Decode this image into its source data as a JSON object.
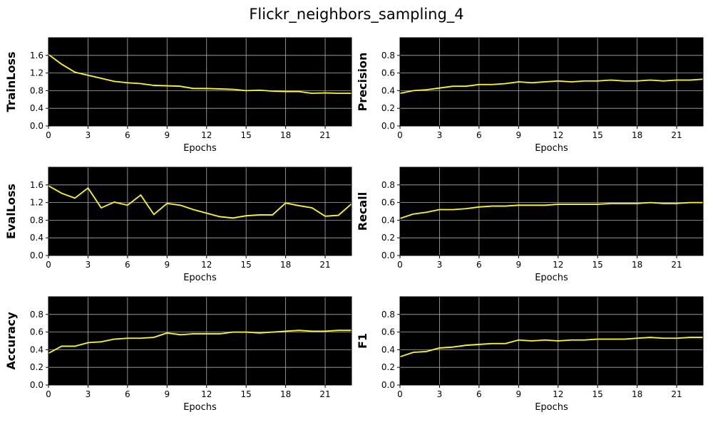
{
  "figure": {
    "title": "Flickr_neighbors_sampling_4"
  },
  "colors": {
    "plot_bg": "#000000",
    "line": "#ffff00",
    "grid": "#b0b0b0"
  },
  "chart_data": [
    {
      "type": "line",
      "ylabel": "TrainLoss",
      "xlabel": "Epochs",
      "xlim": [
        0,
        23
      ],
      "ylim": [
        0,
        2.0
      ],
      "xticks": [
        0,
        3,
        6,
        9,
        12,
        15,
        18,
        21
      ],
      "yticks": [
        0.0,
        0.4,
        0.8,
        1.2,
        1.6
      ],
      "x": [
        0,
        1,
        2,
        3,
        4,
        5,
        6,
        7,
        8,
        9,
        10,
        11,
        12,
        13,
        14,
        15,
        16,
        17,
        18,
        19,
        20,
        21,
        22,
        23
      ],
      "y": [
        1.62,
        1.4,
        1.22,
        1.15,
        1.08,
        1.01,
        0.98,
        0.96,
        0.92,
        0.91,
        0.9,
        0.85,
        0.85,
        0.84,
        0.83,
        0.8,
        0.81,
        0.79,
        0.78,
        0.78,
        0.74,
        0.75,
        0.74,
        0.74
      ]
    },
    {
      "type": "line",
      "ylabel": "Precision",
      "xlabel": "Epochs",
      "xlim": [
        0,
        23
      ],
      "ylim": [
        0,
        1.0
      ],
      "xticks": [
        0,
        3,
        6,
        9,
        12,
        15,
        18,
        21
      ],
      "yticks": [
        0.0,
        0.2,
        0.4,
        0.6,
        0.8
      ],
      "x": [
        0,
        1,
        2,
        3,
        4,
        5,
        6,
        7,
        8,
        9,
        10,
        11,
        12,
        13,
        14,
        15,
        16,
        17,
        18,
        19,
        20,
        21,
        22,
        23
      ],
      "y": [
        0.37,
        0.4,
        0.41,
        0.43,
        0.45,
        0.45,
        0.47,
        0.47,
        0.48,
        0.5,
        0.49,
        0.5,
        0.51,
        0.5,
        0.51,
        0.51,
        0.52,
        0.51,
        0.51,
        0.52,
        0.51,
        0.52,
        0.52,
        0.53
      ]
    },
    {
      "type": "line",
      "ylabel": "EvalLoss",
      "xlabel": "Epochs",
      "xlim": [
        0,
        23
      ],
      "ylim": [
        0,
        2.0
      ],
      "xticks": [
        0,
        3,
        6,
        9,
        12,
        15,
        18,
        21
      ],
      "yticks": [
        0.0,
        0.4,
        0.8,
        1.2,
        1.6
      ],
      "x": [
        0,
        1,
        2,
        3,
        4,
        5,
        6,
        7,
        8,
        9,
        10,
        11,
        12,
        13,
        14,
        15,
        16,
        17,
        18,
        19,
        20,
        21,
        22,
        23
      ],
      "y": [
        1.58,
        1.41,
        1.3,
        1.53,
        1.08,
        1.21,
        1.14,
        1.37,
        0.93,
        1.18,
        1.14,
        1.04,
        0.96,
        0.88,
        0.85,
        0.9,
        0.92,
        0.92,
        1.19,
        1.13,
        1.08,
        0.89,
        0.91,
        1.17
      ]
    },
    {
      "type": "line",
      "ylabel": "Recall",
      "xlabel": "Epochs",
      "xlim": [
        0,
        23
      ],
      "ylim": [
        0,
        1.0
      ],
      "xticks": [
        0,
        3,
        6,
        9,
        12,
        15,
        18,
        21
      ],
      "yticks": [
        0.0,
        0.2,
        0.4,
        0.6,
        0.8
      ],
      "x": [
        0,
        1,
        2,
        3,
        4,
        5,
        6,
        7,
        8,
        9,
        10,
        11,
        12,
        13,
        14,
        15,
        16,
        17,
        18,
        19,
        20,
        21,
        22,
        23
      ],
      "y": [
        0.42,
        0.47,
        0.49,
        0.52,
        0.52,
        0.53,
        0.55,
        0.56,
        0.56,
        0.57,
        0.57,
        0.57,
        0.58,
        0.58,
        0.58,
        0.58,
        0.59,
        0.59,
        0.59,
        0.6,
        0.59,
        0.59,
        0.6,
        0.6
      ]
    },
    {
      "type": "line",
      "ylabel": "Accuracy",
      "xlabel": "Epochs",
      "xlim": [
        0,
        23
      ],
      "ylim": [
        0,
        1.0
      ],
      "xticks": [
        0,
        3,
        6,
        9,
        12,
        15,
        18,
        21
      ],
      "yticks": [
        0.0,
        0.2,
        0.4,
        0.6,
        0.8
      ],
      "x": [
        0,
        1,
        2,
        3,
        4,
        5,
        6,
        7,
        8,
        9,
        10,
        11,
        12,
        13,
        14,
        15,
        16,
        17,
        18,
        19,
        20,
        21,
        22,
        23
      ],
      "y": [
        0.36,
        0.44,
        0.44,
        0.48,
        0.49,
        0.52,
        0.53,
        0.53,
        0.54,
        0.59,
        0.57,
        0.58,
        0.58,
        0.58,
        0.6,
        0.6,
        0.59,
        0.6,
        0.61,
        0.62,
        0.61,
        0.61,
        0.62,
        0.62
      ]
    },
    {
      "type": "line",
      "ylabel": "F1",
      "xlabel": "Epochs",
      "xlim": [
        0,
        23
      ],
      "ylim": [
        0,
        1.0
      ],
      "xticks": [
        0,
        3,
        6,
        9,
        12,
        15,
        18,
        21
      ],
      "yticks": [
        0.0,
        0.2,
        0.4,
        0.6,
        0.8
      ],
      "x": [
        0,
        1,
        2,
        3,
        4,
        5,
        6,
        7,
        8,
        9,
        10,
        11,
        12,
        13,
        14,
        15,
        16,
        17,
        18,
        19,
        20,
        21,
        22,
        23
      ],
      "y": [
        0.32,
        0.37,
        0.38,
        0.42,
        0.43,
        0.45,
        0.46,
        0.47,
        0.47,
        0.51,
        0.5,
        0.51,
        0.5,
        0.51,
        0.51,
        0.52,
        0.52,
        0.52,
        0.53,
        0.54,
        0.53,
        0.53,
        0.54,
        0.54
      ]
    }
  ]
}
